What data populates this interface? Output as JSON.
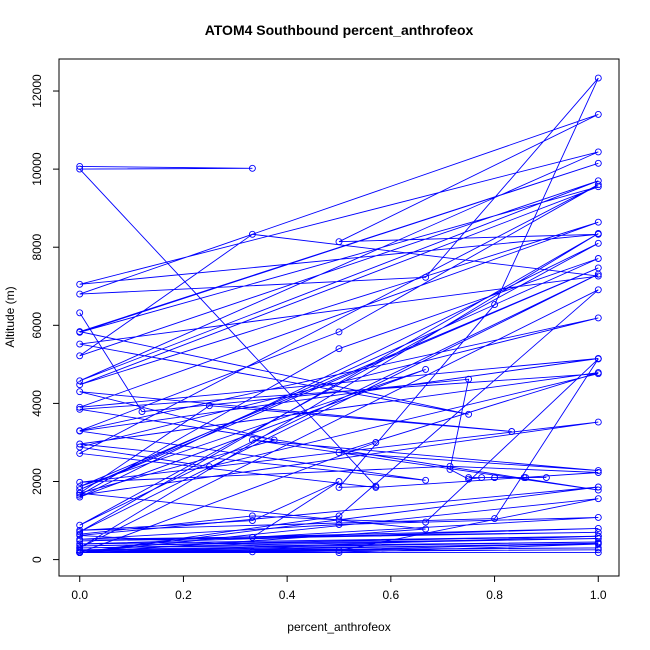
{
  "chart_data": {
    "type": "line",
    "title": "ATOM4 Southbound percent_anthrofeox",
    "xlabel": "percent_anthrofeox",
    "ylabel": "Altitude (m)",
    "xlim": [
      -0.04,
      1.04
    ],
    "ylim": [
      -420,
      12820
    ],
    "x_ticks": [
      0.0,
      0.2,
      0.4,
      0.6,
      0.8,
      1.0
    ],
    "x_tick_labels": [
      "0.0",
      "0.2",
      "0.4",
      "0.6",
      "0.8",
      "1.0"
    ],
    "y_ticks": [
      0,
      2000,
      4000,
      6000,
      8000,
      10000,
      12000
    ],
    "y_tick_labels": [
      "0",
      "2000",
      "4000",
      "6000",
      "8000",
      "10000",
      "12000"
    ],
    "series_color": "#0000ff",
    "marker": "open-circle",
    "grid": false,
    "series": [
      {
        "x": [
          0.0,
          0.333,
          0.0,
          0.571,
          0.5,
          0.8,
          1.0,
          0.667,
          0.0,
          1.0,
          0.5,
          1.0,
          0.0,
          1.0,
          0.0,
          1.0,
          0.0,
          0.333,
          1.0,
          0.0,
          0.75,
          0.0,
          1.0,
          0.0,
          1.0,
          0.0,
          1.0,
          0.0,
          1.0,
          0.0,
          0.667,
          0.0,
          1.0,
          0.5,
          1.0,
          0.333,
          1.0,
          0.0,
          1.0,
          0.25,
          0.0,
          1.0,
          0.0,
          0.5,
          1.0,
          0.0,
          0.571,
          1.0,
          0.714,
          0.0,
          1.0,
          0.0,
          0.5,
          1.0,
          0.0,
          1.0,
          0.0,
          0.667,
          0.0,
          1.0,
          0.0,
          1.0,
          0.0,
          1.0,
          0.0,
          1.0,
          0.5,
          0.0,
          1.0,
          0.5,
          0.0,
          1.0,
          0.0,
          1.0,
          0.333,
          0.0,
          1.0
        ],
        "y": [
          10070,
          10020,
          10000,
          1880,
          1850,
          6530,
          12330,
          7230,
          6800,
          11400,
          8140,
          8330,
          7050,
          10440,
          4580,
          9700,
          5220,
          8330,
          7260,
          5520,
          3720,
          5840,
          10150,
          5820,
          9550,
          4480,
          8640,
          3900,
          5150,
          3290,
          2030,
          2960,
          4790,
          2740,
          2280,
          3060,
          1780,
          3850,
          4760,
          2380,
          2880,
          6190,
          3300,
          5830,
          9600,
          2720,
          1850,
          2230,
          2390,
          1980,
          3520,
          1650,
          5400,
          7710,
          1790,
          7470,
          1870,
          4870,
          1600,
          8100,
          880,
          7310,
          710,
          8350,
          300,
          6910,
          1120,
          180,
          1560,
          230,
          620,
          1860,
          180,
          420,
          200,
          180,
          600
        ]
      },
      {
        "x": [
          0.0,
          0.333,
          0.5,
          0.667,
          1.0,
          0.8,
          0.0,
          0.333,
          0.5,
          0.333,
          1.0,
          0.5,
          0.0,
          1.0,
          0.0,
          1.0,
          0.0,
          1.0,
          0.0,
          1.0,
          0.0,
          1.0,
          0.0,
          0.5,
          1.0,
          0.0,
          1.0,
          0.0,
          1.0,
          0.0,
          1.0
        ],
        "y": [
          650,
          1120,
          1020,
          960,
          5140,
          1050,
          750,
          1000,
          2000,
          570,
          1080,
          900,
          520,
          700,
          480,
          800,
          400,
          600,
          350,
          540,
          300,
          450,
          250,
          180,
          400,
          230,
          300,
          200,
          250,
          180,
          180
        ]
      },
      {
        "x": [
          0.0,
          0.12,
          0.75,
          0.714,
          0.75,
          0.775,
          0.8,
          0.857,
          0.9,
          0.86,
          0.8,
          0.75
        ],
        "y": [
          6320,
          3790,
          4620,
          2310,
          2060,
          2100,
          2100,
          2100,
          2100,
          2100,
          2100,
          2100
        ]
      },
      {
        "x": [
          0.0,
          0.25,
          0.833,
          0.0,
          0.375,
          0.0,
          0.667,
          0.0,
          0.571
        ],
        "y": [
          1700,
          3940,
          3280,
          4300,
          3060,
          1700,
          780,
          180,
          3000
        ]
      }
    ]
  }
}
